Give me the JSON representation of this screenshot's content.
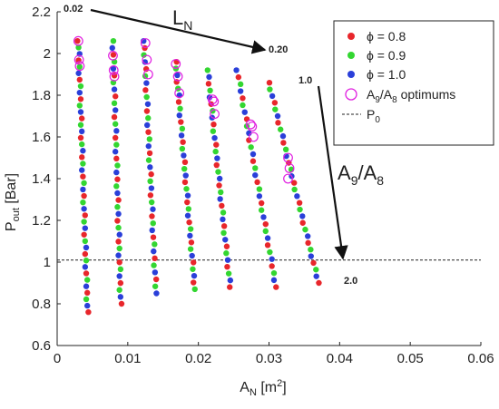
{
  "chart_data": {
    "type": "scatter",
    "xlabel": {
      "main": "A",
      "sub": "N",
      "unit": " [m",
      "sup": "2",
      "close": "]"
    },
    "ylabel": {
      "main": "P",
      "sub": "out",
      "unit": " [Bar]"
    },
    "xlim": [
      0,
      0.06
    ],
    "ylim": [
      0.6,
      2.2
    ],
    "x_ticks": [
      0,
      0.01,
      0.02,
      0.03,
      0.04,
      0.05,
      0.06
    ],
    "x_tick_labels": [
      "0",
      "0.01",
      "0.02",
      "0.03",
      "0.04",
      "0.05",
      "0.06"
    ],
    "y_ticks": [
      0.6,
      0.8,
      1.0,
      1.2,
      1.4,
      1.6,
      1.8,
      2.0,
      2.2
    ],
    "y_tick_labels": [
      "0.6",
      "0.8",
      "1",
      "1.2",
      "1.4",
      "1.6",
      "1.8",
      "2",
      "2.2"
    ],
    "grid": false,
    "legend_position": "top-right",
    "reference_line": {
      "name": "P",
      "sub": "0",
      "y": 1.01,
      "color": "#222222"
    },
    "series": [
      {
        "name": "ϕ = 0.8",
        "color": "#e8262b"
      },
      {
        "name": "ϕ = 0.9",
        "color": "#33d631"
      },
      {
        "name": "ϕ = 1.0",
        "color": "#2a3fd9"
      }
    ],
    "optimum_marker": {
      "label_main": "A",
      "label_sub1": "9",
      "label_slash": "/A",
      "label_sub2": "8",
      "label_rest": " optimums",
      "color": "#e01fe0"
    },
    "columns": [
      {
        "top": [
          0.003,
          2.06
        ],
        "bottom": [
          0.0043,
          0.76
        ],
        "n": 43,
        "start": 0,
        "optimums": [
          [
            0.003,
            2.06
          ],
          [
            0.0031,
            1.97
          ],
          [
            0.0032,
            1.94
          ]
        ]
      },
      {
        "top": [
          0.0079,
          2.06
        ],
        "bottom": [
          0.009,
          0.8
        ],
        "n": 39,
        "start": 1,
        "optimums": [
          [
            0.0079,
            1.99
          ],
          [
            0.008,
            1.92
          ],
          [
            0.0081,
            1.89
          ]
        ]
      },
      {
        "top": [
          0.0123,
          2.06
        ],
        "bottom": [
          0.014,
          0.85
        ],
        "n": 37,
        "start": 2,
        "optimums": [
          [
            0.0125,
            2.05
          ],
          [
            0.0127,
            1.97
          ],
          [
            0.0129,
            1.9
          ]
        ]
      },
      {
        "top": [
          0.0168,
          1.96
        ],
        "bottom": [
          0.0195,
          0.87
        ],
        "n": 35,
        "start": 0,
        "optimums": [
          [
            0.0168,
            1.95
          ],
          [
            0.0171,
            1.89
          ],
          [
            0.0173,
            1.81
          ]
        ]
      },
      {
        "top": [
          0.0213,
          1.92
        ],
        "bottom": [
          0.0245,
          0.88
        ],
        "n": 33,
        "start": 1,
        "optimums": [
          [
            0.022,
            1.78
          ],
          [
            0.0222,
            1.77
          ],
          [
            0.0223,
            1.71
          ]
        ]
      },
      {
        "top": [
          0.0255,
          1.92
        ],
        "bottom": [
          0.031,
          0.88
        ],
        "n": 32,
        "start": 2,
        "optimums": [
          [
            0.0274,
            1.66
          ],
          [
            0.0276,
            1.65
          ],
          [
            0.0278,
            1.6
          ]
        ]
      },
      {
        "top": [
          0.03,
          1.86
        ],
        "bottom": [
          0.037,
          0.9
        ],
        "n": 31,
        "start": 0,
        "optimums": [
          [
            0.0327,
            1.5
          ],
          [
            0.0329,
            1.45
          ],
          [
            0.0327,
            1.4
          ]
        ]
      }
    ],
    "annotations": [
      {
        "id": "ln-start",
        "text": "0.02",
        "x": 0.0,
        "y": 2.23
      },
      {
        "id": "ln-end",
        "text": "0.20",
        "x": 0.0295,
        "y": 1.98
      },
      {
        "id": "area-start",
        "text": "1.0",
        "x": 0.0328,
        "y": 1.87
      },
      {
        "id": "area-end",
        "text": "2.0",
        "x": 0.039,
        "y": 0.94
      }
    ],
    "arrow_labels": {
      "ln": {
        "main": "L",
        "sub": "N"
      },
      "area": {
        "main": "A",
        "sub1": "9",
        "slash": "/A",
        "sub2": "8"
      }
    }
  }
}
